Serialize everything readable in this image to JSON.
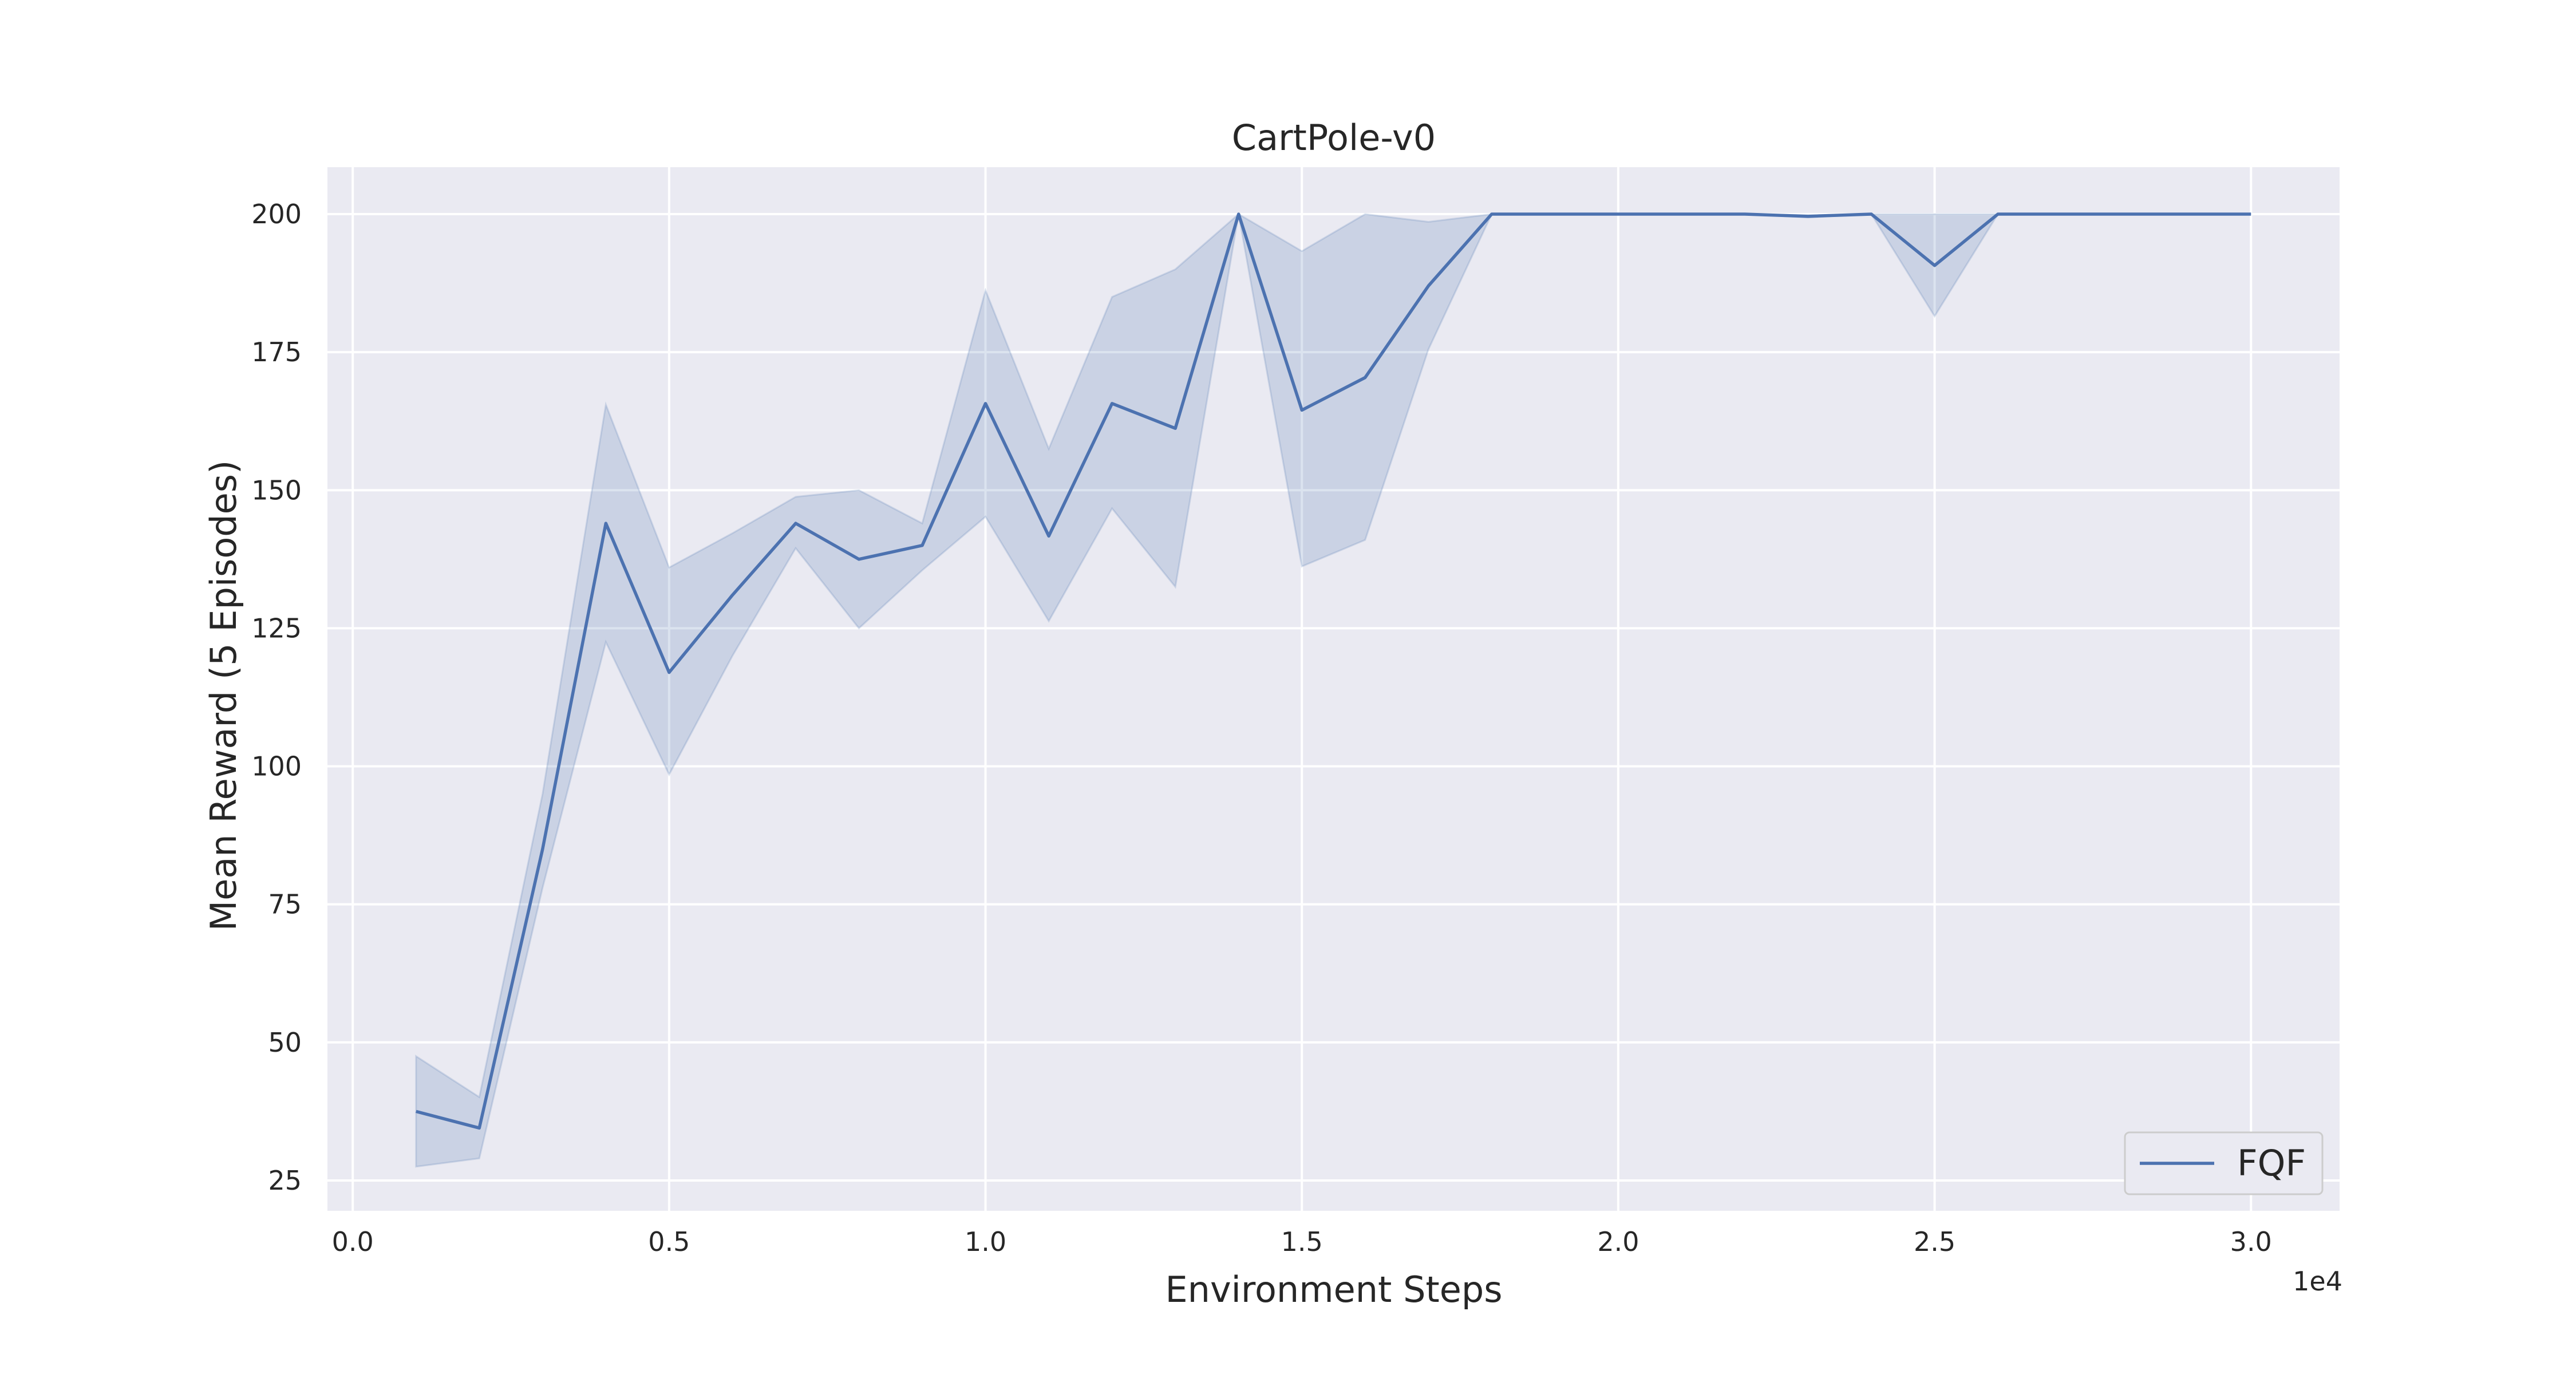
{
  "chart_data": {
    "type": "line",
    "title": "CartPole-v0",
    "xlabel": "Environment Steps",
    "ylabel": "Mean Reward (5 Episodes)",
    "x_offset_label": "1e4",
    "xlim": [
      -0.04,
      3.14
    ],
    "ylim": [
      19.5,
      208.5
    ],
    "x_ticks": [
      0.0,
      0.5,
      1.0,
      1.5,
      2.0,
      2.5,
      3.0
    ],
    "x_tick_labels": [
      "0.0",
      "0.5",
      "1.0",
      "1.5",
      "2.0",
      "2.5",
      "3.0"
    ],
    "y_ticks": [
      25,
      50,
      75,
      100,
      125,
      150,
      175,
      200
    ],
    "y_tick_labels": [
      "25",
      "50",
      "75",
      "100",
      "125",
      "150",
      "175",
      "200"
    ],
    "grid": true,
    "legend_position": "lower-right",
    "colors": {
      "line": "#4c72b0",
      "band": "#4c72b0",
      "plot_background": "#eaeaf2",
      "grid": "#ffffff"
    },
    "series": [
      {
        "name": "FQF",
        "x": [
          0.1,
          0.2,
          0.3,
          0.4,
          0.5,
          0.6,
          0.7,
          0.8,
          0.9,
          1.0,
          1.1,
          1.2,
          1.3,
          1.4,
          1.5,
          1.6,
          1.7,
          1.8,
          1.9,
          2.0,
          2.1,
          2.2,
          2.3,
          2.4,
          2.5,
          2.6,
          2.7,
          2.8,
          2.9,
          3.0
        ],
        "y": [
          37.5,
          34.5,
          85,
          144,
          117,
          131,
          144,
          137.5,
          140,
          165.7,
          141.7,
          165.7,
          161.2,
          200,
          164.5,
          170.4,
          187,
          200,
          200,
          200,
          200,
          200,
          199.6,
          200,
          190.7,
          200,
          200,
          200,
          200,
          200
        ],
        "y_lower": [
          27.5,
          29,
          78,
          122.5,
          98.5,
          120,
          139.5,
          125,
          135.5,
          145.2,
          126.3,
          146.7,
          132.5,
          200,
          136.2,
          141,
          175.5,
          200,
          200,
          200,
          200,
          200,
          199.4,
          200,
          181.5,
          200,
          200,
          200,
          200,
          200
        ],
        "y_upper": [
          47.5,
          40.1,
          95,
          165.5,
          136,
          142.2,
          148.8,
          150,
          144,
          186.2,
          157.5,
          185,
          190,
          200,
          193.3,
          200,
          198.6,
          200,
          200,
          200,
          200,
          200,
          199.8,
          200,
          200,
          200,
          200,
          200,
          200,
          200
        ]
      }
    ]
  }
}
